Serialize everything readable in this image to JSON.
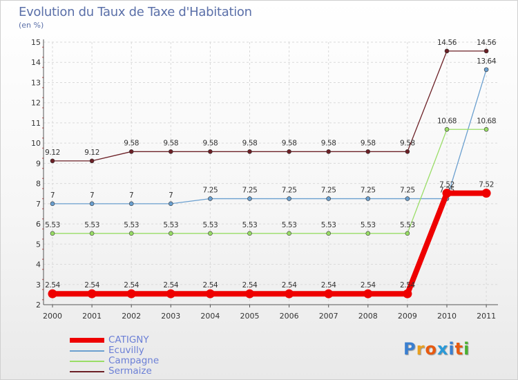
{
  "chart_data": {
    "type": "line",
    "title": "Evolution du Taux de Taxe d'Habitation",
    "subtitle": "(en %)",
    "x": [
      "2000",
      "2001",
      "2002",
      "2003",
      "2004",
      "2005",
      "2006",
      "2007",
      "2008",
      "2009",
      "2010",
      "2011"
    ],
    "ylim": [
      2,
      15
    ],
    "yticks": [
      "2",
      "3",
      "4",
      "5",
      "6",
      "7",
      "8",
      "9",
      "10",
      "11",
      "12",
      "13",
      "14",
      "15"
    ],
    "grid": true,
    "legend_position": "bottom-left",
    "series": [
      {
        "name": "Sermaize",
        "color": "#6b1f25",
        "values": [
          9.12,
          9.12,
          9.58,
          9.58,
          9.58,
          9.58,
          9.58,
          9.58,
          9.58,
          9.58,
          14.56,
          14.56
        ],
        "labels": [
          "9.12",
          "9.12",
          "9.58",
          "9.58",
          "9.58",
          "9.58",
          "9.58",
          "9.58",
          "9.58",
          "9.58",
          "14.56",
          "14.56"
        ]
      },
      {
        "name": "Ecuvilly",
        "color": "#6a9fcf",
        "values": [
          7,
          7,
          7,
          7,
          7.25,
          7.25,
          7.25,
          7.25,
          7.25,
          7.25,
          7.25,
          13.64
        ],
        "labels": [
          "7",
          "7",
          "7",
          "7",
          "7.25",
          "7.25",
          "7.25",
          "7.25",
          "7.25",
          "7.25",
          "7.25",
          "13.64"
        ]
      },
      {
        "name": "Campagne",
        "color": "#99dd66",
        "values": [
          5.53,
          5.53,
          5.53,
          5.53,
          5.53,
          5.53,
          5.53,
          5.53,
          5.53,
          5.53,
          10.68,
          10.68
        ],
        "labels": [
          "5.53",
          "5.53",
          "5.53",
          "5.53",
          "5.53",
          "5.53",
          "5.53",
          "5.53",
          "5.53",
          "5.53",
          "10.68",
          "10.68"
        ]
      },
      {
        "name": "CATIGNY",
        "color": "#ee0000",
        "values": [
          2.54,
          2.54,
          2.54,
          2.54,
          2.54,
          2.54,
          2.54,
          2.54,
          2.54,
          2.54,
          7.52,
          7.52
        ],
        "labels": [
          "2.54",
          "2.54",
          "2.54",
          "2.54",
          "2.54",
          "2.54",
          "2.54",
          "2.54",
          "2.54",
          "2.54",
          "7.52",
          "7.52"
        ]
      }
    ]
  },
  "legend": [
    {
      "name": "CATIGNY",
      "color": "#ee0000",
      "thick": true
    },
    {
      "name": "Ecuvilly",
      "color": "#6a9fcf",
      "thick": false
    },
    {
      "name": "Campagne",
      "color": "#99dd66",
      "thick": false
    },
    {
      "name": "Sermaize",
      "color": "#6b1f25",
      "thick": false
    }
  ],
  "logo": {
    "text": "Proxiti",
    "colors": [
      "#3a7fd0",
      "#e8a020",
      "#e85a10",
      "#2a9ad8",
      "#3a7fd0",
      "#e85a10",
      "#4ab030"
    ]
  }
}
